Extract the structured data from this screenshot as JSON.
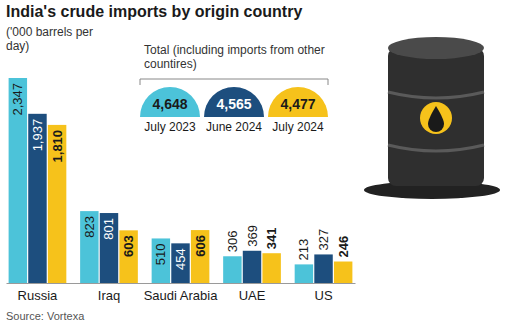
{
  "chart_data": {
    "type": "bar",
    "title": "India's crude imports by origin country",
    "subtitle": "('000 barrels per day)",
    "annotation": "Total (including imports from other countires)",
    "source": "Source: Vortexa",
    "categories": [
      "Russia",
      "Iraq",
      "Saudi Arabia",
      "UAE",
      "US"
    ],
    "series": [
      {
        "name": "July 2023",
        "color": "#4cc3d9",
        "values": [
          2347,
          823,
          510,
          306,
          213
        ],
        "value_labels": [
          "2,347",
          "823",
          "510",
          "306",
          "213"
        ],
        "total": 4648,
        "total_label": "4,648"
      },
      {
        "name": "June 2024",
        "color": "#1d4e7e",
        "values": [
          1937,
          801,
          454,
          369,
          327
        ],
        "value_labels": [
          "1,937",
          "801",
          "454",
          "369",
          "327"
        ],
        "total": 4565,
        "total_label": "4,565"
      },
      {
        "name": "July 2024",
        "color": "#f6c21b",
        "values": [
          1810,
          603,
          606,
          341,
          246
        ],
        "value_labels": [
          "1,810",
          "603",
          "606",
          "341",
          "246"
        ],
        "total": 4477,
        "total_label": "4,477"
      }
    ],
    "data_labels": true,
    "legend": "top",
    "tick_labels": "x"
  }
}
